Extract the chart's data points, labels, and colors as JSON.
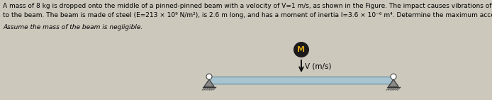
{
  "background_color": "#ccc8bc",
  "text_line1": "A mass of 8 kg is dropped onto the middle of a pinned-pinned beam with a velocity of V=1 m/s, as shown in the Figure. The impact causes vibrations of the mass, which sticks",
  "text_line2": "to the beam. The beam is made of steel (E=213 × 10⁹ N/m²), is 2.6 m long, and has a moment of inertia I=3.6 × 10⁻⁶ m⁴. Determine the maximum acceleration of vibration.",
  "text_line3": "Assume the mass of the beam is negligible.",
  "text_fontsize": 6.5,
  "text_bold_fontsize": 6.7,
  "mass_label": "M",
  "velocity_label": "V (m/s)",
  "mass_color": "#1a1a1a",
  "mass_text_color": "#d4a017",
  "beam_color": "#a8c4d0",
  "beam_edge_color": "#5a8a9f",
  "pin_fill_color": "#888888",
  "pin_edge_color": "#333333",
  "hatch_color": "#555555",
  "arrow_color": "#111111",
  "fig_width": 6.94,
  "fig_height": 1.41,
  "dpi": 100
}
